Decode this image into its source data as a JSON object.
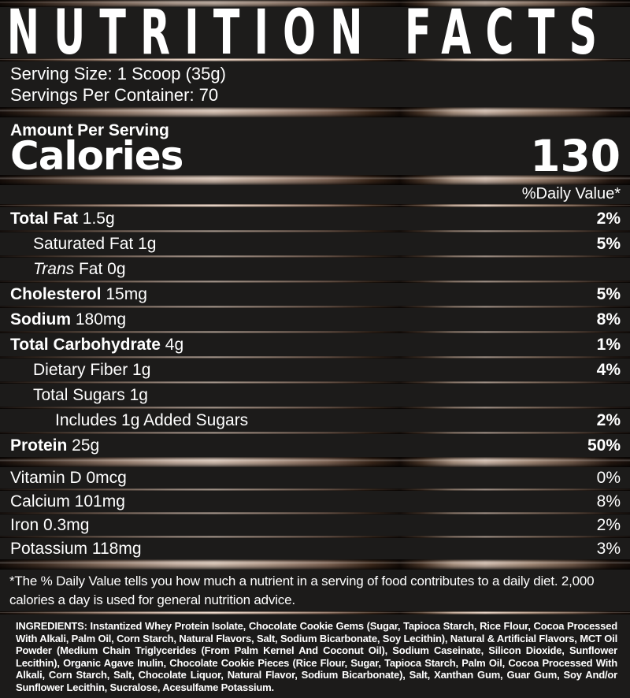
{
  "label": {
    "title": "NUTRITION FACTS",
    "serving_size": "Serving Size: 1 Scoop (35g)",
    "servings_per_container": "Servings Per Container: 70",
    "amount_per_serving": "Amount Per Serving",
    "calories_label": "Calories",
    "calories_value": "130",
    "daily_value_header": "%Daily Value*",
    "footnote": "*The % Daily Value tells you how much a nutrient in a serving of food contributes to a daily diet. 2,000\ncalories a day is used for general nutrition advice.",
    "ingredients": "INGREDIENTS: Instantized Whey Protein Isolate, Chocolate Cookie Gems (Sugar, Tapioca Starch, Rice Flour, Cocoa Processed With Alkali, Palm Oil, Corn Starch, Natural Flavors, Salt, Sodium Bicarbonate, Soy Lecithin), Natural & Artificial Flavors, MCT Oil Powder (Medium Chain Triglycerides (From Palm Kernel And Coconut Oil), Sodium Caseinate, Silicon Dioxide, Sunflower Lecithin), Organic Agave Inulin, Chocolate Cookie Pieces (Rice Flour, Sugar, Tapioca Starch, Palm Oil, Cocoa Processed With Alkali, Corn Starch, Salt, Chocolate Liquor, Natural Flavor, Sodium Bicarbonate), Salt, Xanthan Gum, Guar Gum, Soy And/or Sunflower Lecithin, Sucralose, Acesulfame Potassium."
  },
  "nutrients": [
    {
      "bold": "Total Fat",
      "rest": " 1.5g",
      "dv": "2%"
    },
    {
      "bold": "",
      "rest": "Saturated Fat 1g",
      "dv": "5%"
    },
    {
      "bold": "",
      "italic": "Trans",
      "rest": " Fat 0g",
      "dv": ""
    },
    {
      "bold": "Cholesterol",
      "rest": " 15mg",
      "dv": "5%"
    },
    {
      "bold": "Sodium",
      "rest": " 180mg",
      "dv": "8%"
    },
    {
      "bold": "Total Carbohydrate",
      "rest": " 4g",
      "dv": "1%"
    },
    {
      "bold": "",
      "rest": "Dietary Fiber 1g",
      "dv": "4%"
    },
    {
      "bold": "",
      "rest": "Total Sugars 1g",
      "dv": ""
    },
    {
      "bold": "",
      "rest": "Includes 1g Added Sugars",
      "dv": "2%"
    },
    {
      "bold": "Protein",
      "rest": " 25g",
      "dv": "50%"
    }
  ],
  "micronutrients": [
    {
      "rest": "Vitamin D 0mcg",
      "dv": "0%"
    },
    {
      "rest": "Calcium 101mg",
      "dv": "8%"
    },
    {
      "rest": "Iron 0.3mg",
      "dv": "2%"
    },
    {
      "rest": "Potassium 118mg",
      "dv": "3%"
    }
  ],
  "colors": {
    "background": "#1c1b1a",
    "text": "#ffffff",
    "bar_highlight": "#d0bdaf",
    "bar_shadow": "#150d09"
  }
}
